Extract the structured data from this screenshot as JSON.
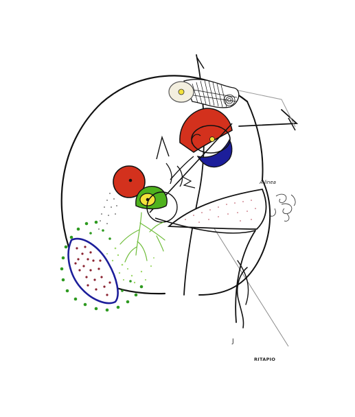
{
  "artwork": {
    "handwritten_note": "A linea",
    "corner_mark": "J",
    "signature": "RITAPIO"
  },
  "colors": {
    "ink": "#111111",
    "red": "#d3311d",
    "yellow": "#f3e23a",
    "green": "#4fb21e",
    "light_green": "#9ed86a",
    "blue": "#1c1e9a",
    "maroon": "#8a2230",
    "gray_pencil": "#8a8a8a",
    "paper": "#ffffff"
  }
}
